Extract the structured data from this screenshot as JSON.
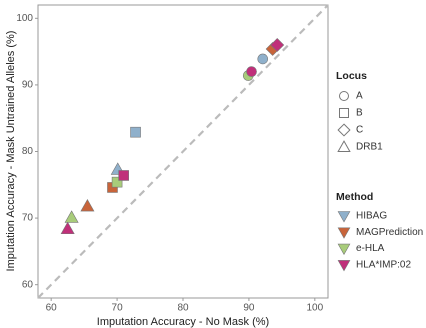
{
  "chart_data": {
    "type": "scatter",
    "x_label": "Imputation Accuracy - No Mask (%)",
    "y_label": "Imputation Accuracy - Mask Untrained Alleles (%)",
    "xlim": [
      58,
      102
    ],
    "ylim": [
      58,
      102
    ],
    "xticks": [
      60,
      70,
      80,
      90,
      100
    ],
    "yticks": [
      60,
      70,
      80,
      90,
      100
    ],
    "identity_line": true,
    "legend_locus": {
      "title": "Locus",
      "items": [
        {
          "name": "A",
          "shape": "circle"
        },
        {
          "name": "B",
          "shape": "square"
        },
        {
          "name": "C",
          "shape": "diamond"
        },
        {
          "name": "DRB1",
          "shape": "triangle"
        }
      ]
    },
    "legend_method_title": "Method",
    "series": [
      {
        "name": "HIBAG",
        "color": "#8fb0cb",
        "x": [
          92.1,
          72.8,
          70.1
        ],
        "y": [
          93.9,
          82.9,
          77.3
        ],
        "locus": [
          "A",
          "B",
          "DRB1"
        ]
      },
      {
        "name": "MAGPrediction",
        "color": "#c8643a",
        "x": [
          93.6,
          69.3,
          65.5
        ],
        "y": [
          95.4,
          74.6,
          71.8
        ],
        "locus": [
          "C",
          "B",
          "DRB1"
        ]
      },
      {
        "name": "e-HLA",
        "color": "#a8cc7a",
        "x": [
          89.9,
          70.0,
          63.1
        ],
        "y": [
          91.4,
          75.4,
          70.1
        ],
        "locus": [
          "A",
          "B",
          "DRB1"
        ]
      },
      {
        "name": "HLA*IMP:02",
        "color": "#c0307a",
        "x": [
          90.4,
          71.0,
          62.5,
          94.3
        ],
        "y": [
          92.0,
          76.4,
          68.4,
          96.0
        ],
        "locus": [
          "A",
          "B",
          "DRB1",
          "C"
        ]
      }
    ]
  }
}
